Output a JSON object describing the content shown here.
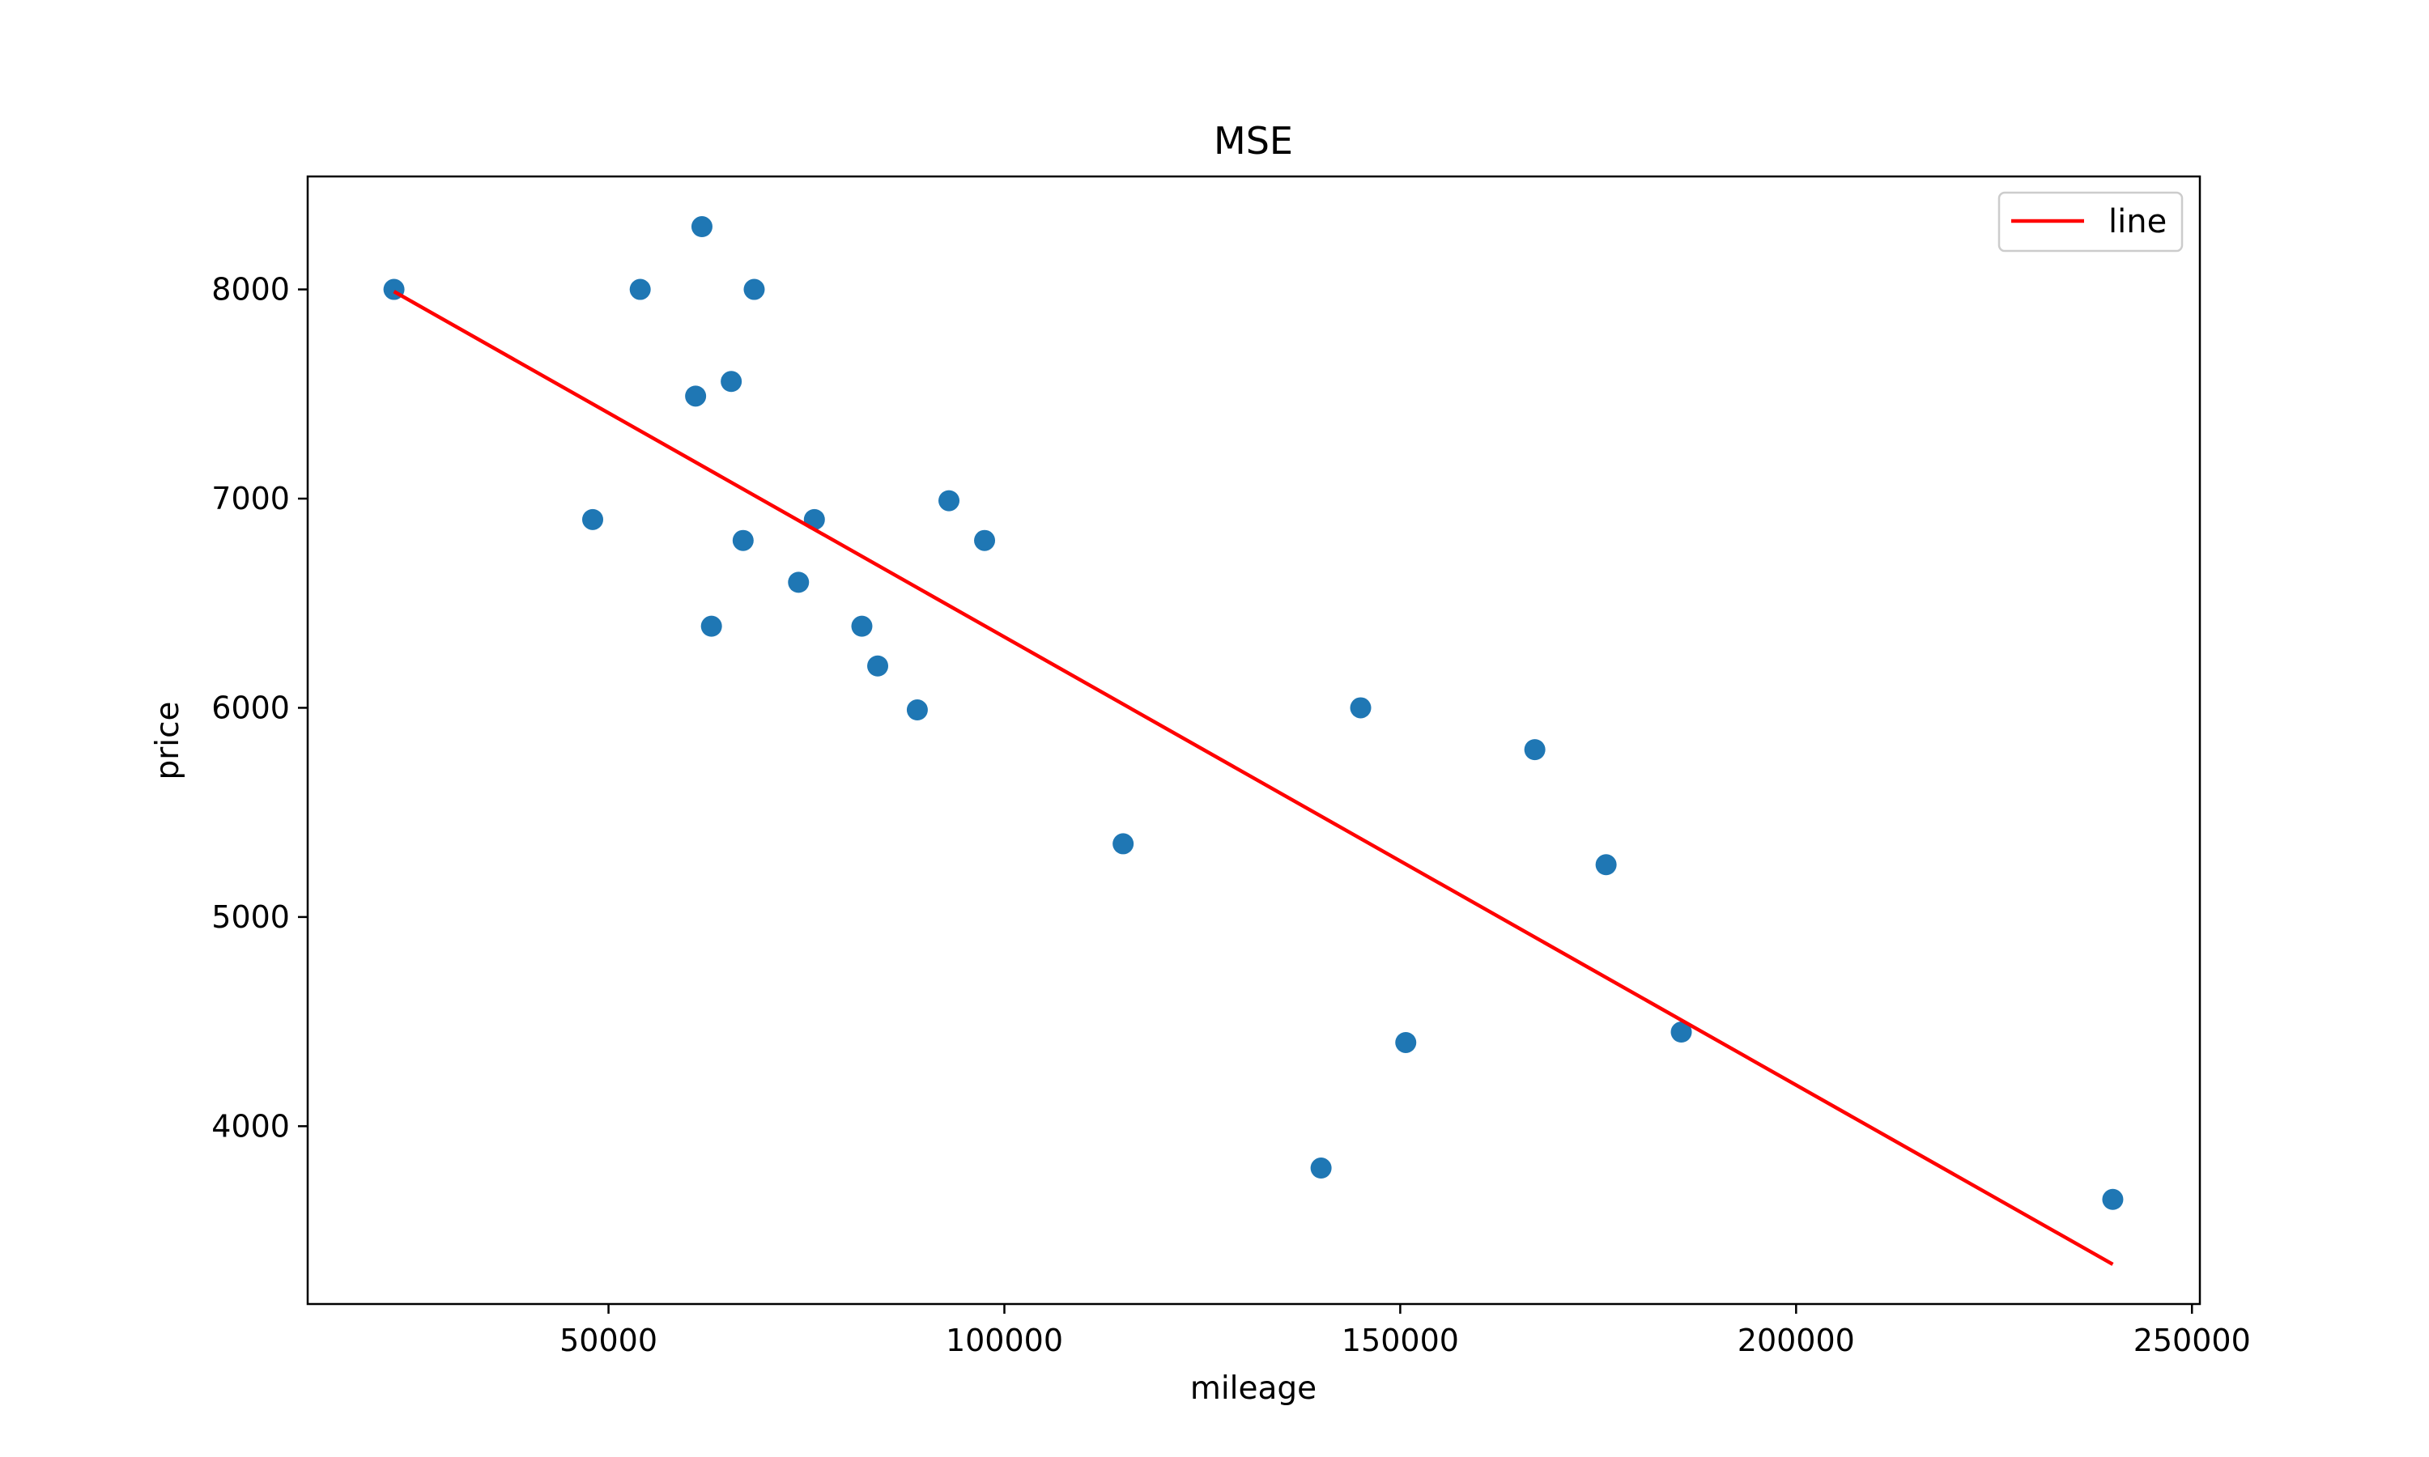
{
  "chart_data": {
    "type": "scatter",
    "title": "MSE",
    "xlabel": "mileage",
    "ylabel": "price",
    "xlim": [
      12000,
      251000
    ],
    "ylim": [
      3150,
      8540
    ],
    "xticks": [
      50000,
      100000,
      150000,
      200000,
      250000
    ],
    "yticks": [
      4000,
      5000,
      6000,
      7000,
      8000
    ],
    "xtick_labels": [
      "50000",
      "100000",
      "150000",
      "200000",
      "250000"
    ],
    "ytick_labels": [
      "4000",
      "5000",
      "6000",
      "7000",
      "8000"
    ],
    "grid": false,
    "legend": {
      "position": "top-right",
      "entries": [
        "line"
      ]
    },
    "points": {
      "color": "#1f77b4",
      "x": [
        22900,
        48000,
        54000,
        61000,
        61800,
        63000,
        65500,
        67000,
        68400,
        74000,
        76000,
        82000,
        84000,
        89000,
        93000,
        97500,
        115000,
        140000,
        145000,
        150700,
        167000,
        176000,
        185500,
        240000
      ],
      "y": [
        8000,
        6900,
        8000,
        7490,
        8300,
        6390,
        7560,
        6800,
        8000,
        6600,
        6900,
        6390,
        6200,
        5990,
        6990,
        6800,
        5350,
        3800,
        6000,
        4400,
        5800,
        5250,
        4450,
        3650
      ]
    },
    "series": [
      {
        "name": "line",
        "type": "line",
        "color": "#ff0000",
        "x": [
          22900,
          240000
        ],
        "y": [
          7990,
          3340
        ]
      }
    ]
  }
}
